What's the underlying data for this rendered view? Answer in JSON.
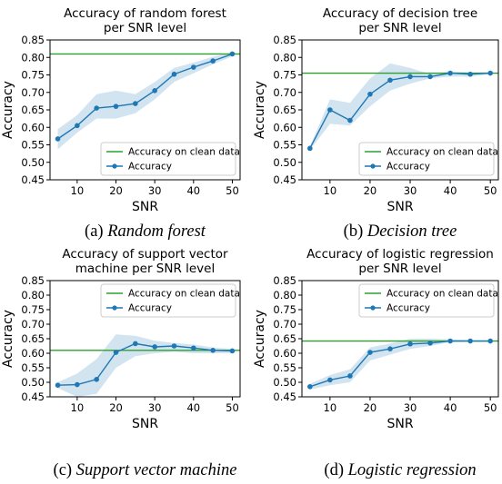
{
  "chart_data": [
    {
      "type": "line",
      "title_line1": "Accuracy of random forest",
      "title_line2": "per SNR level",
      "xlabel": "SNR",
      "ylabel": "Accuracy",
      "xlim": [
        3,
        52
      ],
      "ylim": [
        0.45,
        0.85
      ],
      "xticks": [
        10,
        20,
        30,
        40,
        50
      ],
      "yticks": [
        0.45,
        0.5,
        0.55,
        0.6,
        0.65,
        0.7,
        0.75,
        0.8,
        0.85
      ],
      "xtick_labels": [
        "10",
        "20",
        "30",
        "40",
        "50"
      ],
      "ytick_labels": [
        "0.45",
        "0.50",
        "0.55",
        "0.60",
        "0.65",
        "0.70",
        "0.75",
        "0.80",
        "0.85"
      ],
      "legend_position": "lower-right",
      "clean_accuracy": 0.81,
      "x": [
        5,
        10,
        15,
        20,
        25,
        30,
        35,
        40,
        45,
        50
      ],
      "accuracy": [
        0.567,
        0.605,
        0.655,
        0.66,
        0.668,
        0.705,
        0.752,
        0.772,
        0.79,
        0.81
      ],
      "band_lower": [
        0.537,
        0.585,
        0.625,
        0.625,
        0.64,
        0.68,
        0.73,
        0.755,
        0.78,
        0.803
      ],
      "band_upper": [
        0.595,
        0.635,
        0.695,
        0.705,
        0.695,
        0.73,
        0.77,
        0.785,
        0.802,
        0.815
      ],
      "series": [
        {
          "name": "Accuracy on clean data",
          "color": "#2ca02c"
        },
        {
          "name": "Accuracy",
          "color": "#1f77b4"
        }
      ],
      "caption_prefix": "(a) ",
      "caption_italic": "Random forest"
    },
    {
      "type": "line",
      "title_line1": "Accuracy of decision tree",
      "title_line2": "per SNR level",
      "xlabel": "SNR",
      "ylabel": "Accuracy",
      "xlim": [
        3,
        52
      ],
      "ylim": [
        0.45,
        0.85
      ],
      "xticks": [
        10,
        20,
        30,
        40,
        50
      ],
      "yticks": [
        0.45,
        0.5,
        0.55,
        0.6,
        0.65,
        0.7,
        0.75,
        0.8,
        0.85
      ],
      "xtick_labels": [
        "10",
        "20",
        "30",
        "40",
        "50"
      ],
      "ytick_labels": [
        "0.45",
        "0.50",
        "0.55",
        "0.60",
        "0.65",
        "0.70",
        "0.75",
        "0.80",
        "0.85"
      ],
      "legend_position": "lower-right",
      "clean_accuracy": 0.755,
      "x": [
        5,
        10,
        15,
        20,
        25,
        30,
        35,
        40,
        45,
        50
      ],
      "accuracy": [
        0.54,
        0.65,
        0.62,
        0.695,
        0.735,
        0.745,
        0.745,
        0.755,
        0.752,
        0.755
      ],
      "band_lower": [
        0.535,
        0.61,
        0.605,
        0.66,
        0.705,
        0.725,
        0.74,
        0.745,
        0.745,
        0.752
      ],
      "band_upper": [
        0.545,
        0.68,
        0.67,
        0.74,
        0.783,
        0.77,
        0.752,
        0.76,
        0.756,
        0.758
      ],
      "series": [
        {
          "name": "Accuracy on clean data",
          "color": "#2ca02c"
        },
        {
          "name": "Accuracy",
          "color": "#1f77b4"
        }
      ],
      "caption_prefix": "(b) ",
      "caption_italic": "Decision tree"
    },
    {
      "type": "line",
      "title_line1": "Accuracy of support vector",
      "title_line2": "machine per SNR level",
      "xlabel": "SNR",
      "ylabel": "Accuracy",
      "xlim": [
        3,
        52
      ],
      "ylim": [
        0.45,
        0.85
      ],
      "xticks": [
        10,
        20,
        30,
        40,
        50
      ],
      "yticks": [
        0.45,
        0.5,
        0.55,
        0.6,
        0.65,
        0.7,
        0.75,
        0.8,
        0.85
      ],
      "xtick_labels": [
        "10",
        "20",
        "30",
        "40",
        "50"
      ],
      "ytick_labels": [
        "0.45",
        "0.50",
        "0.55",
        "0.60",
        "0.65",
        "0.70",
        "0.75",
        "0.80",
        "0.85"
      ],
      "legend_position": "upper-right",
      "clean_accuracy": 0.61,
      "x": [
        5,
        10,
        15,
        20,
        25,
        30,
        35,
        40,
        45,
        50
      ],
      "accuracy": [
        0.49,
        0.492,
        0.51,
        0.603,
        0.633,
        0.622,
        0.625,
        0.618,
        0.61,
        0.608
      ],
      "band_lower": [
        0.48,
        0.45,
        0.46,
        0.55,
        0.59,
        0.6,
        0.605,
        0.6,
        0.6,
        0.6
      ],
      "band_upper": [
        0.5,
        0.53,
        0.58,
        0.665,
        0.66,
        0.643,
        0.635,
        0.63,
        0.62,
        0.615
      ],
      "series": [
        {
          "name": "Accuracy on clean data",
          "color": "#2ca02c"
        },
        {
          "name": "Accuracy",
          "color": "#1f77b4"
        }
      ],
      "caption_prefix": "(c) ",
      "caption_italic": "Support vector machine"
    },
    {
      "type": "line",
      "title_line1": "Accuracy of logistic regression",
      "title_line2": "per SNR level",
      "xlabel": "SNR",
      "ylabel": "Accuracy",
      "xlim": [
        3,
        52
      ],
      "ylim": [
        0.45,
        0.85
      ],
      "xticks": [
        10,
        20,
        30,
        40,
        50
      ],
      "yticks": [
        0.45,
        0.5,
        0.55,
        0.6,
        0.65,
        0.7,
        0.75,
        0.8,
        0.85
      ],
      "xtick_labels": [
        "10",
        "20",
        "30",
        "40",
        "50"
      ],
      "ytick_labels": [
        "0.45",
        "0.50",
        "0.55",
        "0.60",
        "0.65",
        "0.70",
        "0.75",
        "0.80",
        "0.85"
      ],
      "legend_position": "upper-right",
      "clean_accuracy": 0.642,
      "x": [
        5,
        10,
        15,
        20,
        25,
        30,
        35,
        40,
        45,
        50
      ],
      "accuracy": [
        0.485,
        0.508,
        0.522,
        0.603,
        0.615,
        0.632,
        0.635,
        0.642,
        0.642,
        0.642
      ],
      "band_lower": [
        0.475,
        0.49,
        0.5,
        0.575,
        0.595,
        0.615,
        0.625,
        0.638,
        0.64,
        0.64
      ],
      "band_upper": [
        0.495,
        0.525,
        0.545,
        0.62,
        0.633,
        0.65,
        0.65,
        0.648,
        0.645,
        0.644
      ],
      "series": [
        {
          "name": "Accuracy on clean data",
          "color": "#2ca02c"
        },
        {
          "name": "Accuracy",
          "color": "#1f77b4"
        }
      ],
      "caption_prefix": "(d) ",
      "caption_italic": "Logistic regression"
    }
  ]
}
